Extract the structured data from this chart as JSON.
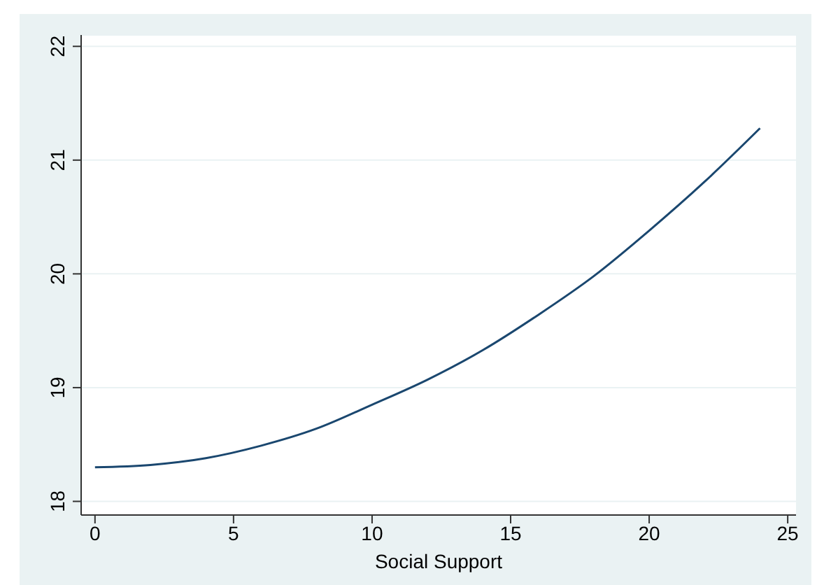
{
  "chart_data": {
    "type": "line",
    "xlabel": "Social Support",
    "x": [
      0,
      2,
      4,
      6,
      8,
      10,
      12,
      14,
      16,
      18,
      20,
      22,
      24
    ],
    "series": [
      {
        "color": "#1a476f",
        "values": [
          18.3,
          18.32,
          18.38,
          18.49,
          18.64,
          18.85,
          19.07,
          19.33,
          19.64,
          19.98,
          20.38,
          20.81,
          21.28
        ]
      }
    ],
    "xlim": [
      -0.5,
      25.3
    ],
    "xticks": [
      0,
      5,
      10,
      15,
      20,
      25
    ],
    "ylim": [
      17.88,
      22.1
    ],
    "yticks": [
      18,
      19,
      20,
      21,
      22
    ],
    "grid": "y",
    "marker": "none",
    "line_style": "solid"
  }
}
